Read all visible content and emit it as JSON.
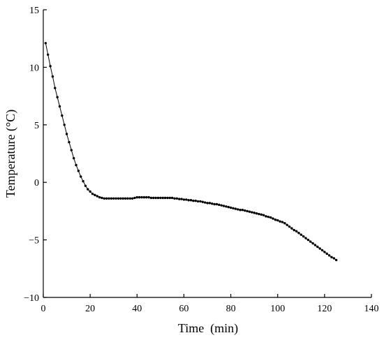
{
  "chart_data": {
    "type": "line",
    "title": "",
    "xlabel": "Time  (min)",
    "ylabel": "Temperature (°C)",
    "xlim": [
      0,
      140
    ],
    "ylim": [
      -10,
      15
    ],
    "xticks": [
      0,
      20,
      40,
      60,
      80,
      100,
      120,
      140
    ],
    "yticks": [
      15,
      10,
      5,
      0,
      -5,
      -10
    ],
    "ytick_labels": [
      "15",
      "10",
      "5",
      "0",
      "−5",
      "−10"
    ],
    "grid": false,
    "legend": "none",
    "series": [
      {
        "color": "#000000",
        "marker": "dot",
        "x": [
          1,
          2,
          3,
          4,
          5,
          6,
          7,
          8,
          9,
          10,
          11,
          12,
          13,
          14,
          15,
          16,
          17,
          18,
          19,
          20,
          21,
          22,
          23,
          24,
          25,
          26,
          27,
          28,
          29,
          30,
          31,
          32,
          33,
          34,
          35,
          36,
          37,
          38,
          39,
          40,
          41,
          42,
          43,
          44,
          45,
          46,
          47,
          48,
          49,
          50,
          51,
          52,
          53,
          54,
          55,
          56,
          57,
          58,
          59,
          60,
          61,
          62,
          63,
          64,
          65,
          66,
          67,
          68,
          69,
          70,
          71,
          72,
          73,
          74,
          75,
          76,
          77,
          78,
          79,
          80,
          81,
          82,
          83,
          84,
          85,
          86,
          87,
          88,
          89,
          90,
          91,
          92,
          93,
          94,
          95,
          96,
          97,
          98,
          99,
          100,
          101,
          102,
          103,
          104,
          105,
          106,
          107,
          108,
          109,
          110,
          111,
          112,
          113,
          114,
          115,
          116,
          117,
          118,
          119,
          120,
          121,
          122,
          123,
          124,
          125
        ],
        "y": [
          12.1,
          11.1,
          10.1,
          9.2,
          8.2,
          7.4,
          6.6,
          5.8,
          5.0,
          4.2,
          3.5,
          2.8,
          2.1,
          1.5,
          1.0,
          0.5,
          0.1,
          -0.3,
          -0.6,
          -0.8,
          -1.0,
          -1.1,
          -1.2,
          -1.3,
          -1.35,
          -1.4,
          -1.4,
          -1.4,
          -1.4,
          -1.4,
          -1.4,
          -1.4,
          -1.4,
          -1.4,
          -1.4,
          -1.4,
          -1.4,
          -1.4,
          -1.35,
          -1.3,
          -1.3,
          -1.3,
          -1.3,
          -1.3,
          -1.3,
          -1.35,
          -1.35,
          -1.35,
          -1.35,
          -1.35,
          -1.35,
          -1.35,
          -1.35,
          -1.35,
          -1.35,
          -1.4,
          -1.4,
          -1.45,
          -1.45,
          -1.5,
          -1.5,
          -1.55,
          -1.55,
          -1.6,
          -1.6,
          -1.65,
          -1.65,
          -1.7,
          -1.75,
          -1.8,
          -1.8,
          -1.85,
          -1.9,
          -1.9,
          -1.95,
          -2.0,
          -2.05,
          -2.1,
          -2.15,
          -2.2,
          -2.25,
          -2.3,
          -2.35,
          -2.4,
          -2.4,
          -2.45,
          -2.5,
          -2.55,
          -2.6,
          -2.65,
          -2.7,
          -2.75,
          -2.8,
          -2.85,
          -2.95,
          -3.0,
          -3.05,
          -3.15,
          -3.25,
          -3.3,
          -3.4,
          -3.45,
          -3.55,
          -3.7,
          -3.85,
          -4.0,
          -4.15,
          -4.25,
          -4.4,
          -4.55,
          -4.7,
          -4.85,
          -5.0,
          -5.15,
          -5.3,
          -5.45,
          -5.6,
          -5.75,
          -5.9,
          -6.05,
          -6.2,
          -6.35,
          -6.5,
          -6.6,
          -6.75
        ]
      }
    ]
  }
}
